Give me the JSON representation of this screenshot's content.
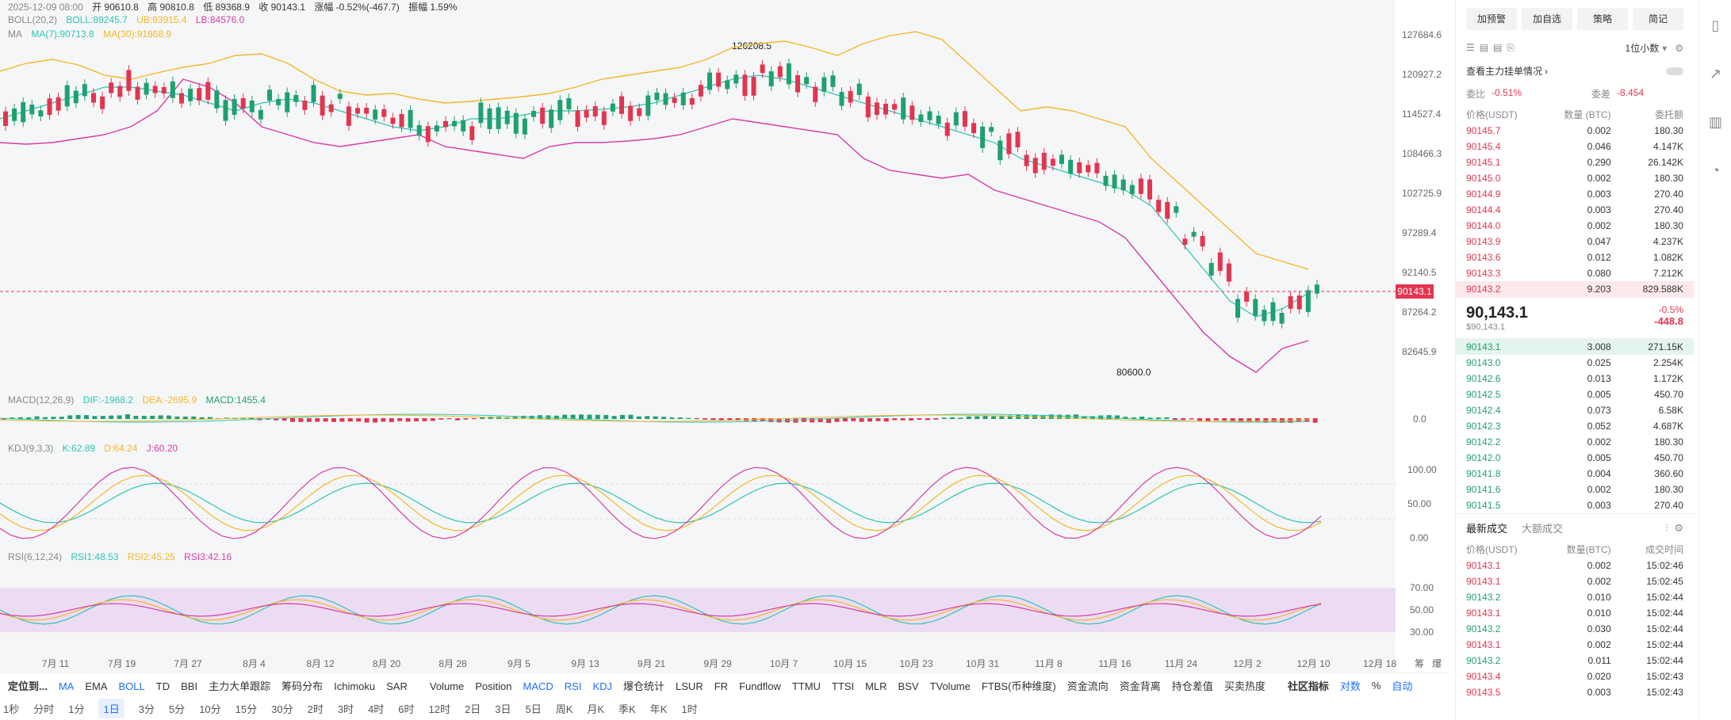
{
  "header": {
    "date": "2025-12-09 08:00",
    "open": "开 90610.8",
    "high": "高 90810.8",
    "low": "低 89368.9",
    "close": "收 90143.1",
    "change": "涨幅 -0.52%(-467.7)",
    "amplitude": "振幅 1.59%"
  },
  "boll": {
    "label": "BOLL(20,2)",
    "boll": "BOLL:89245.7",
    "ub": "UB:93915.4",
    "lb": "LB:84576.0"
  },
  "ma": {
    "label": "MA",
    "ma7": "MA(7):90713.8",
    "ma30": "MA(30):91868.9"
  },
  "macd": {
    "label": "MACD(12,26,9)",
    "dif": "DIF:-1968.2",
    "dea": "DEA:-2695.9",
    "macd": "MACD:1455.4",
    "zero": "0.0"
  },
  "kdj": {
    "label": "KDJ(9,3,3)",
    "k": "K:62.89",
    "d": "D:64.24",
    "j": "J:60.20",
    "t100": "100.00",
    "t50": "50.00",
    "t0": "0.00"
  },
  "rsi": {
    "label": "RSI(6,12,24)",
    "r1": "RSI1:48.53",
    "r2": "RSI2:45.25",
    "r3": "RSI3:42.16",
    "t70": "70.00",
    "t50": "50.00",
    "t30": "30.00"
  },
  "price_axis": [
    "127684.6",
    "120927.2",
    "114527.4",
    "108466.3",
    "102725.9",
    "97289.4",
    "92140.5",
    "87264.2",
    "82645.9"
  ],
  "current_price_tag": "90143.1",
  "high_marker": "126208.5",
  "low_marker": "80600.0",
  "date_axis": [
    "7月 11",
    "7月 19",
    "7月 27",
    "8月 4",
    "8月 12",
    "8月 20",
    "8月 28",
    "9月 5",
    "9月 13",
    "9月 21",
    "9月 29",
    "10月 7",
    "10月 15",
    "10月 23",
    "10月 31",
    "11月 8",
    "11月 16",
    "11月 24",
    "12月 2",
    "12月 10",
    "12月 18",
    "筹",
    "爆"
  ],
  "indicator_bar": {
    "locate": "定位到...",
    "main": [
      "MA",
      "EMA",
      "BOLL",
      "TD",
      "BBI",
      "主力大单跟踪",
      "筹码分布",
      "Ichimoku",
      "SAR"
    ],
    "sub": [
      "Volume",
      "Position",
      "MACD",
      "RSI",
      "KDJ",
      "爆仓统计",
      "LSUR",
      "FR",
      "Fundflow",
      "TTMU",
      "TTSI",
      "MLR",
      "BSV",
      "TVolume",
      "FTBS(币种维度)",
      "资金流向",
      "资金背离",
      "持仓差值",
      "买卖热度"
    ],
    "community": "社区指标",
    "log": "对数",
    "percent": "%",
    "auto": "自动"
  },
  "timeframes": [
    "1秒",
    "分时",
    "1分",
    "1日",
    "3分",
    "5分",
    "10分",
    "15分",
    "30分",
    "2时",
    "3时",
    "4时",
    "6时",
    "12时",
    "2日",
    "3日",
    "5日",
    "周K",
    "月K",
    "季K",
    "年K",
    "1时"
  ],
  "active_timeframe": "1日",
  "right_panel": {
    "buttons": [
      "加预警",
      "加自选",
      "策略",
      "简记"
    ],
    "decimals": "1位小数",
    "whale_title": "查看主力挂单情况",
    "ratio_label": "委比",
    "ratio_value": "-0.51%",
    "diff_label": "委差",
    "diff_value": "-8.454",
    "headers": [
      "价格(USDT)",
      "数量 (BTC)",
      "委托额"
    ],
    "asks": [
      [
        "90145.7",
        "0.002",
        "180.30"
      ],
      [
        "90145.4",
        "0.046",
        "4.147K"
      ],
      [
        "90145.1",
        "0.290",
        "26.142K"
      ],
      [
        "90145.0",
        "0.002",
        "180.30"
      ],
      [
        "90144.9",
        "0.003",
        "270.40"
      ],
      [
        "90144.4",
        "0.003",
        "270.40"
      ],
      [
        "90144.0",
        "0.002",
        "180.30"
      ],
      [
        "90143.9",
        "0.047",
        "4.237K"
      ],
      [
        "90143.6",
        "0.012",
        "1.082K"
      ],
      [
        "90143.3",
        "0.080",
        "7.212K"
      ],
      [
        "90143.2",
        "9.203",
        "829.588K"
      ]
    ],
    "last_price": "90,143.1",
    "last_usd": "$90,143.1",
    "pct": "-0.5%",
    "delta": "-448.8",
    "bids": [
      [
        "90143.1",
        "3.008",
        "271.15K"
      ],
      [
        "90143.0",
        "0.025",
        "2.254K"
      ],
      [
        "90142.6",
        "0.013",
        "1.172K"
      ],
      [
        "90142.5",
        "0.005",
        "450.70"
      ],
      [
        "90142.4",
        "0.073",
        "6.58K"
      ],
      [
        "90142.3",
        "0.052",
        "4.687K"
      ],
      [
        "90142.2",
        "0.002",
        "180.30"
      ],
      [
        "90142.0",
        "0.005",
        "450.70"
      ],
      [
        "90141.8",
        "0.004",
        "360.60"
      ],
      [
        "90141.6",
        "0.002",
        "180.30"
      ],
      [
        "90141.5",
        "0.003",
        "270.40"
      ]
    ],
    "trade_tabs": [
      "最新成交",
      "大额成交"
    ],
    "trade_headers": [
      "价格(USDT)",
      "数量(BTC)",
      "成交时间"
    ],
    "trades": [
      [
        "90143.1",
        "0.002",
        "15:02:46",
        "red"
      ],
      [
        "90143.1",
        "0.002",
        "15:02:45",
        "red"
      ],
      [
        "90143.2",
        "0.010",
        "15:02:44",
        "green"
      ],
      [
        "90143.1",
        "0.010",
        "15:02:44",
        "red"
      ],
      [
        "90143.2",
        "0.030",
        "15:02:44",
        "green"
      ],
      [
        "90143.1",
        "0.002",
        "15:02:44",
        "red"
      ],
      [
        "90143.2",
        "0.011",
        "15:02:44",
        "green"
      ],
      [
        "90143.4",
        "0.020",
        "15:02:43",
        "red"
      ],
      [
        "90143.5",
        "0.003",
        "15:02:43",
        "red"
      ]
    ]
  },
  "colors": {
    "up": "#1fa06f",
    "down": "#e2354f",
    "accent": "#1e6fff",
    "boll_ub": "#f3b72c",
    "boll_lb": "#d63da6",
    "ma7": "#2ec4b6"
  }
}
